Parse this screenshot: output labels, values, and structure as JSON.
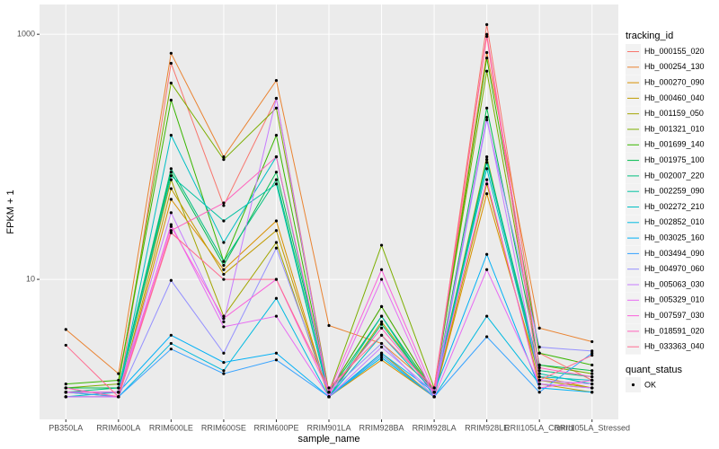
{
  "chart_data": {
    "type": "line",
    "x_label": "sample_name",
    "y_label": "FPKM + 1",
    "categories": [
      "PB350LA",
      "RRIM600LA",
      "RRIM600LE",
      "RRIM600SE",
      "RRIM600PE",
      "RRIM901LA",
      "RRIM928BA",
      "RRIM928LA",
      "RRIM928LE",
      "RRII105LA_Control",
      "RRII105LA_Stressed"
    ],
    "ylim": [
      0.72,
      1750
    ],
    "yticks": [
      10,
      1000
    ],
    "ylog": true,
    "grid": true,
    "legend_title": "tracking_id",
    "legend_position": "right",
    "point_legend_title": "quant_status",
    "point_legend_label": "OK",
    "point_color": "#000000",
    "series": [
      {
        "name": "Hb_000155_020",
        "color": "#F8766D",
        "values": [
          1.3,
          1.1,
          580,
          40,
          300,
          1.2,
          6,
          1.2,
          1200,
          2.5,
          1.5
        ]
      },
      {
        "name": "Hb_000254_130",
        "color": "#EA8331",
        "values": [
          3.9,
          1.7,
          700,
          100,
          420,
          4.2,
          3.0,
          1.3,
          710,
          4.0,
          3.1
        ]
      },
      {
        "name": "Hb_000270_090",
        "color": "#D89000",
        "values": [
          1.2,
          1.1,
          45,
          12,
          30,
          1.1,
          2.2,
          1.1,
          50,
          1.6,
          1.3
        ]
      },
      {
        "name": "Hb_000460_040",
        "color": "#C09B00",
        "values": [
          1.1,
          1.1,
          55,
          11,
          25,
          1.1,
          2.5,
          1.1,
          60,
          1.4,
          1.2
        ]
      },
      {
        "name": "Hb_001159_050",
        "color": "#A3A500",
        "values": [
          1.2,
          1.2,
          65,
          5,
          20,
          1.1,
          4.5,
          1.2,
          100,
          1.5,
          1.3
        ]
      },
      {
        "name": "Hb_001321_010",
        "color": "#7CAE00",
        "values": [
          1.3,
          1.4,
          400,
          95,
          250,
          1.2,
          19,
          1.3,
          500,
          2.0,
          1.7
        ]
      },
      {
        "name": "Hb_001699_140",
        "color": "#39B600",
        "values": [
          1.4,
          1.5,
          290,
          14,
          150,
          1.2,
          6,
          1.2,
          640,
          2.5,
          2.0
        ]
      },
      {
        "name": "Hb_001975_100",
        "color": "#00BB4E",
        "values": [
          1.3,
          1.3,
          75,
          13,
          75,
          1.2,
          5,
          1.2,
          250,
          2.0,
          1.8
        ]
      },
      {
        "name": "Hb_002007_220",
        "color": "#00BF7D",
        "values": [
          1.2,
          1.3,
          80,
          14,
          65,
          1.1,
          4.3,
          1.2,
          95,
          1.8,
          1.6
        ]
      },
      {
        "name": "Hb_002259_090",
        "color": "#00C1A3",
        "values": [
          1.2,
          1.2,
          70,
          30,
          60,
          1.1,
          5,
          1.1,
          90,
          1.7,
          1.4
        ]
      },
      {
        "name": "Hb_002272_210",
        "color": "#00BFC4",
        "values": [
          1.1,
          1.2,
          150,
          20,
          100,
          1.1,
          3.5,
          1.2,
          80,
          1.6,
          1.5
        ]
      },
      {
        "name": "Hb_002852_010",
        "color": "#00BAE0",
        "values": [
          1.1,
          1.1,
          3.0,
          1.8,
          7,
          1.1,
          2.3,
          1.1,
          5,
          1.4,
          1.3
        ]
      },
      {
        "name": "Hb_003025_160",
        "color": "#00B0F6",
        "values": [
          1.2,
          1.2,
          3.5,
          2.1,
          2.5,
          1.1,
          2.5,
          1.2,
          16,
          1.3,
          1.2
        ]
      },
      {
        "name": "Hb_003494_090",
        "color": "#35A2FF",
        "values": [
          1.2,
          1.1,
          2.7,
          1.7,
          2.2,
          1.1,
          2.4,
          1.1,
          3.4,
          1.2,
          2.5
        ]
      },
      {
        "name": "Hb_004970_060",
        "color": "#9590FF",
        "values": [
          1.1,
          1.1,
          9.8,
          2.5,
          18,
          1.2,
          3,
          1.1,
          200,
          2.8,
          2.6
        ]
      },
      {
        "name": "Hb_005063_030",
        "color": "#C77CFF",
        "values": [
          1.2,
          1.2,
          35,
          4.5,
          300,
          1.1,
          2.8,
          1.2,
          210,
          1.5,
          1.4
        ]
      },
      {
        "name": "Hb_005329_010",
        "color": "#E76BF3",
        "values": [
          1.1,
          1.1,
          28,
          4.1,
          5.0,
          1.1,
          10,
          1.1,
          12,
          1.4,
          1.3
        ]
      },
      {
        "name": "Hb_007597_030",
        "color": "#FA62DB",
        "values": [
          1.2,
          1.2,
          27,
          4.8,
          10,
          1.2,
          12,
          1.2,
          65,
          1.3,
          1.5
        ]
      },
      {
        "name": "Hb_018591_020",
        "color": "#FF62BC",
        "values": [
          1.3,
          1.1,
          25,
          42,
          100,
          1.2,
          4.0,
          1.2,
          1000,
          1.9,
          1.6
        ]
      },
      {
        "name": "Hb_033363_040",
        "color": "#FF6C91",
        "values": [
          2.9,
          1.1,
          24,
          10,
          10,
          1.3,
          3.5,
          1.3,
          960,
          1.5,
          2.4
        ]
      }
    ]
  }
}
